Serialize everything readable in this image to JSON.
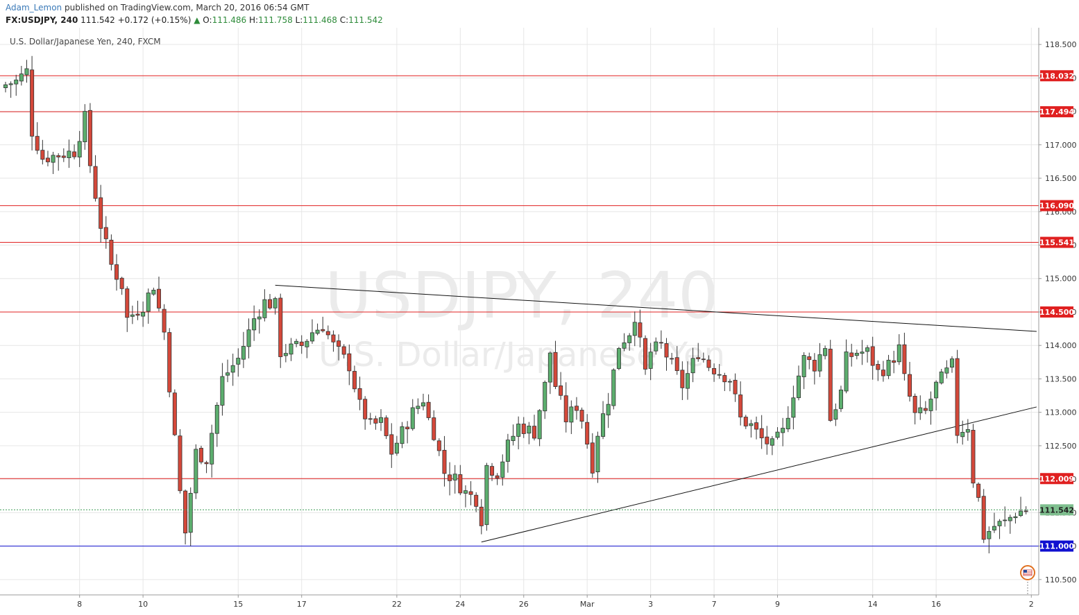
{
  "header": {
    "author": "Adam_Lemon",
    "published_text": "published on TradingView.com, March 20, 2016 06:54 GMT",
    "symbol": "FX:USDJPY, 240",
    "last": "111.542",
    "change": "+0.172 (+0.15%)",
    "o_label": "O:",
    "o_value": "111.486",
    "h_label": "H:",
    "h_value": "111.758",
    "l_label": "L:",
    "l_value": "111.468",
    "c_label": "C:",
    "c_value": "111.542"
  },
  "chart_data": {
    "type": "candlestick",
    "title": "U.S. Dollar/Japanese Yen, 240, FXCM",
    "watermark_symbol": "USDJPY, 240",
    "watermark_name": "U.S. Dollar/Japanese Yen",
    "ylim": [
      110.27,
      118.75
    ],
    "y_ticks": [
      110.5,
      111.0,
      111.5,
      112.0,
      112.5,
      113.0,
      113.5,
      114.0,
      114.5,
      115.0,
      115.5,
      116.0,
      116.5,
      117.0,
      117.5,
      118.0,
      118.5
    ],
    "y_tick_labels": [
      "110.500",
      "111.000",
      "111.500",
      "112.000",
      "112.500",
      "113.000",
      "113.500",
      "114.000",
      "114.500",
      "115.000",
      "115.500",
      "116.000",
      "116.500",
      "117.000",
      "117.500",
      "118.000",
      "118.500"
    ],
    "x_tick_labels": [
      "8",
      "10",
      "15",
      "17",
      "22",
      "24",
      "26",
      "Mar",
      "3",
      "7",
      "9",
      "14",
      "16",
      "2"
    ],
    "x_tick_bar_index": [
      14,
      26,
      44,
      56,
      74,
      86,
      98,
      110,
      122,
      134,
      146,
      164,
      176,
      194
    ],
    "bar_count": 195,
    "horizontal_levels": [
      {
        "value": 118.032,
        "label": "118.032",
        "color": "#e02020"
      },
      {
        "value": 117.494,
        "label": "117.494",
        "color": "#e02020"
      },
      {
        "value": 116.09,
        "label": "116.090",
        "color": "#e02020"
      },
      {
        "value": 115.541,
        "label": "115.541",
        "color": "#e02020"
      },
      {
        "value": 114.5,
        "label": "114.500",
        "color": "#e02020"
      },
      {
        "value": 112.009,
        "label": "112.009",
        "color": "#e02020"
      },
      {
        "value": 111.0,
        "label": "111.000",
        "color": "#1010d0"
      }
    ],
    "last_price": {
      "value": 111.542,
      "label": "111.542",
      "color": "#7fbf8f"
    },
    "trendlines": [
      {
        "from": [
          51,
          114.9
        ],
        "to": [
          195,
          114.21
        ]
      },
      {
        "from": [
          90,
          111.06
        ],
        "to": [
          195,
          113.08
        ]
      }
    ],
    "anchors": [
      [
        0,
        117.9
      ],
      [
        2,
        117.95
      ],
      [
        4,
        118.1
      ],
      [
        5,
        117.2
      ],
      [
        7,
        116.8
      ],
      [
        10,
        116.85
      ],
      [
        13,
        116.9
      ],
      [
        15,
        117.4
      ],
      [
        16,
        116.7
      ],
      [
        18,
        115.8
      ],
      [
        20,
        115.2
      ],
      [
        22,
        114.9
      ],
      [
        23,
        114.4
      ],
      [
        26,
        114.6
      ],
      [
        28,
        114.9
      ],
      [
        30,
        114.2
      ],
      [
        33,
        111.8
      ],
      [
        34,
        111.2
      ],
      [
        36,
        112.4
      ],
      [
        38,
        112.3
      ],
      [
        41,
        113.5
      ],
      [
        44,
        113.8
      ],
      [
        47,
        114.4
      ],
      [
        49,
        114.65
      ],
      [
        51,
        114.6
      ],
      [
        52,
        113.9
      ],
      [
        54,
        113.95
      ],
      [
        56,
        114.0
      ],
      [
        58,
        114.2
      ],
      [
        60,
        114.3
      ],
      [
        62,
        114.0
      ],
      [
        65,
        113.7
      ],
      [
        67,
        113.1
      ],
      [
        69,
        112.8
      ],
      [
        71,
        112.85
      ],
      [
        73,
        112.4
      ],
      [
        75,
        112.7
      ],
      [
        77,
        113.0
      ],
      [
        79,
        113.2
      ],
      [
        80,
        112.9
      ],
      [
        81,
        112.7
      ],
      [
        83,
        112.1
      ],
      [
        85,
        112.0
      ],
      [
        87,
        111.8
      ],
      [
        89,
        111.7
      ],
      [
        90,
        111.4
      ],
      [
        91,
        112.2
      ],
      [
        93,
        112.1
      ],
      [
        95,
        112.5
      ],
      [
        97,
        112.8
      ],
      [
        100,
        112.7
      ],
      [
        102,
        113.4
      ],
      [
        103,
        113.9
      ],
      [
        104,
        113.4
      ],
      [
        106,
        112.9
      ],
      [
        108,
        113.1
      ],
      [
        109,
        112.9
      ],
      [
        111,
        112.2
      ],
      [
        112,
        112.7
      ],
      [
        114,
        113.2
      ],
      [
        116,
        114.0
      ],
      [
        118,
        114.2
      ],
      [
        119,
        114.45
      ],
      [
        121,
        113.6
      ],
      [
        122,
        113.9
      ],
      [
        124,
        114.0
      ],
      [
        126,
        113.7
      ],
      [
        128,
        113.4
      ],
      [
        131,
        113.9
      ],
      [
        133,
        113.7
      ],
      [
        135,
        113.6
      ],
      [
        137,
        113.5
      ],
      [
        139,
        112.9
      ],
      [
        141,
        112.8
      ],
      [
        143,
        112.6
      ],
      [
        145,
        112.5
      ],
      [
        147,
        112.7
      ],
      [
        149,
        113.3
      ],
      [
        151,
        113.8
      ],
      [
        153,
        113.7
      ],
      [
        155,
        114.0
      ],
      [
        156,
        112.9
      ],
      [
        158,
        113.3
      ],
      [
        159,
        113.8
      ],
      [
        161,
        113.9
      ],
      [
        163,
        113.9
      ],
      [
        165,
        113.6
      ],
      [
        167,
        113.7
      ],
      [
        169,
        113.95
      ],
      [
        170,
        113.5
      ],
      [
        172,
        112.95
      ],
      [
        174,
        113.0
      ],
      [
        176,
        113.4
      ],
      [
        178,
        113.6
      ],
      [
        179,
        113.7
      ],
      [
        180,
        112.7
      ],
      [
        182,
        112.8
      ],
      [
        183,
        112.0
      ],
      [
        184,
        111.7
      ],
      [
        185,
        111.15
      ],
      [
        187,
        111.3
      ],
      [
        189,
        111.35
      ],
      [
        191,
        111.5
      ],
      [
        193,
        111.542
      ]
    ]
  }
}
